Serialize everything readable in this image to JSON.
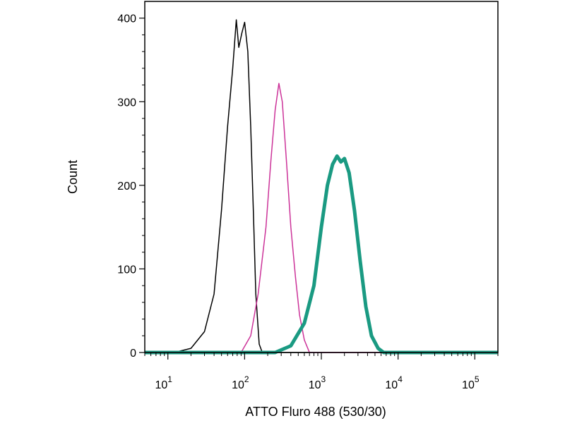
{
  "chart_data": {
    "type": "line",
    "title": "",
    "xlabel": "ATTO Fluro 488 (530/30)",
    "ylabel": "Count",
    "x_scale": "log",
    "xlim": [
      5,
      200000
    ],
    "ylim": [
      0,
      420
    ],
    "grid": false,
    "legend": "none",
    "y_ticks": [
      0,
      100,
      200,
      300,
      400
    ],
    "x_ticks": [
      {
        "value": 10,
        "base": "10",
        "exp": "1"
      },
      {
        "value": 100,
        "base": "10",
        "exp": "2"
      },
      {
        "value": 1000,
        "base": "10",
        "exp": "3"
      },
      {
        "value": 10000,
        "base": "10",
        "exp": "4"
      },
      {
        "value": 100000,
        "base": "10",
        "exp": "5"
      }
    ],
    "series": [
      {
        "color": "#000000",
        "width": 1.5,
        "points": [
          [
            5,
            0
          ],
          [
            12,
            0
          ],
          [
            20,
            5
          ],
          [
            30,
            25
          ],
          [
            40,
            70
          ],
          [
            50,
            170
          ],
          [
            60,
            270
          ],
          [
            70,
            340
          ],
          [
            78,
            398
          ],
          [
            84,
            365
          ],
          [
            92,
            382
          ],
          [
            100,
            395
          ],
          [
            110,
            360
          ],
          [
            120,
            270
          ],
          [
            130,
            170
          ],
          [
            140,
            70
          ],
          [
            155,
            10
          ],
          [
            170,
            0
          ],
          [
            200000,
            0
          ]
        ]
      },
      {
        "color": "#cc3399",
        "width": 1.5,
        "points": [
          [
            5,
            0
          ],
          [
            90,
            0
          ],
          [
            120,
            20
          ],
          [
            150,
            70
          ],
          [
            190,
            150
          ],
          [
            220,
            230
          ],
          [
            250,
            290
          ],
          [
            280,
            322
          ],
          [
            310,
            300
          ],
          [
            350,
            230
          ],
          [
            400,
            150
          ],
          [
            460,
            90
          ],
          [
            520,
            45
          ],
          [
            600,
            15
          ],
          [
            700,
            0
          ],
          [
            200000,
            0
          ]
        ]
      },
      {
        "color": "#1a9a82",
        "width": 5,
        "points": [
          [
            5,
            0
          ],
          [
            250,
            0
          ],
          [
            400,
            8
          ],
          [
            600,
            35
          ],
          [
            800,
            80
          ],
          [
            1000,
            150
          ],
          [
            1200,
            200
          ],
          [
            1400,
            225
          ],
          [
            1600,
            235
          ],
          [
            1800,
            228
          ],
          [
            2000,
            232
          ],
          [
            2300,
            215
          ],
          [
            2700,
            170
          ],
          [
            3200,
            110
          ],
          [
            3800,
            55
          ],
          [
            4500,
            20
          ],
          [
            5500,
            5
          ],
          [
            6500,
            0
          ],
          [
            200000,
            0
          ]
        ]
      }
    ]
  }
}
